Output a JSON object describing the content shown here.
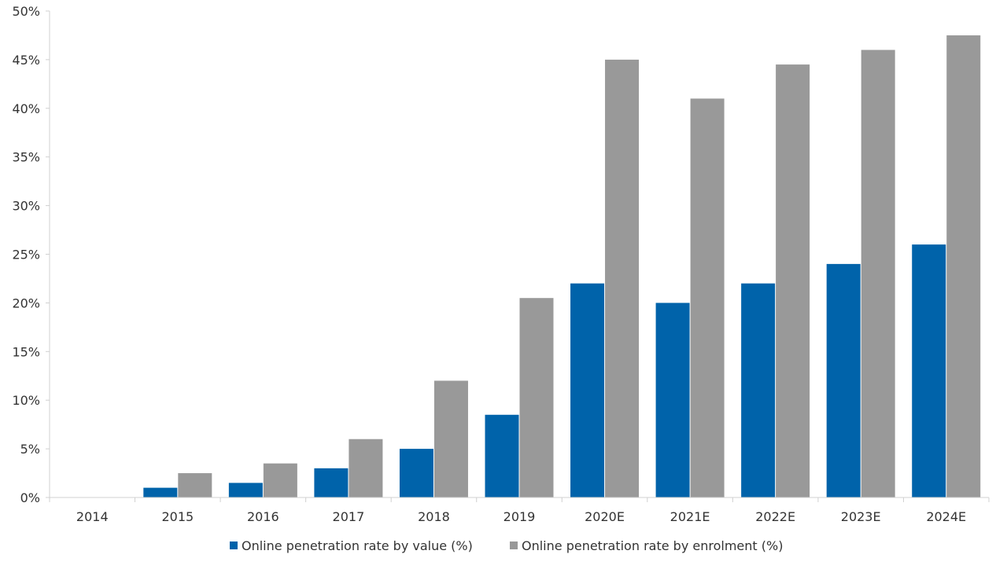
{
  "chart_data": {
    "type": "bar",
    "title": "",
    "xlabel": "",
    "ylabel": "",
    "ylim": [
      0,
      50
    ],
    "yticks": [
      "0%",
      "5%",
      "10%",
      "15%",
      "20%",
      "25%",
      "30%",
      "35%",
      "40%",
      "45%",
      "50%"
    ],
    "ytick_values": [
      0,
      5,
      10,
      15,
      20,
      25,
      30,
      35,
      40,
      45,
      50
    ],
    "categories": [
      "2014",
      "2015",
      "2016",
      "2017",
      "2018",
      "2019",
      "2020E",
      "2021E",
      "2022E",
      "2023E",
      "2024E"
    ],
    "series": [
      {
        "name": "Online penetration rate by value (%)",
        "color": "#0063aa",
        "values": [
          0,
          1,
          1.5,
          3,
          5,
          8.5,
          22,
          20,
          22,
          24,
          26
        ]
      },
      {
        "name": "Online penetration rate by enrolment (%)",
        "color": "#999999",
        "values": [
          0,
          2.5,
          3.5,
          6,
          12,
          20.5,
          45,
          41,
          44.5,
          46,
          47.5
        ]
      }
    ],
    "grid": false,
    "legend": "bottom-center"
  }
}
